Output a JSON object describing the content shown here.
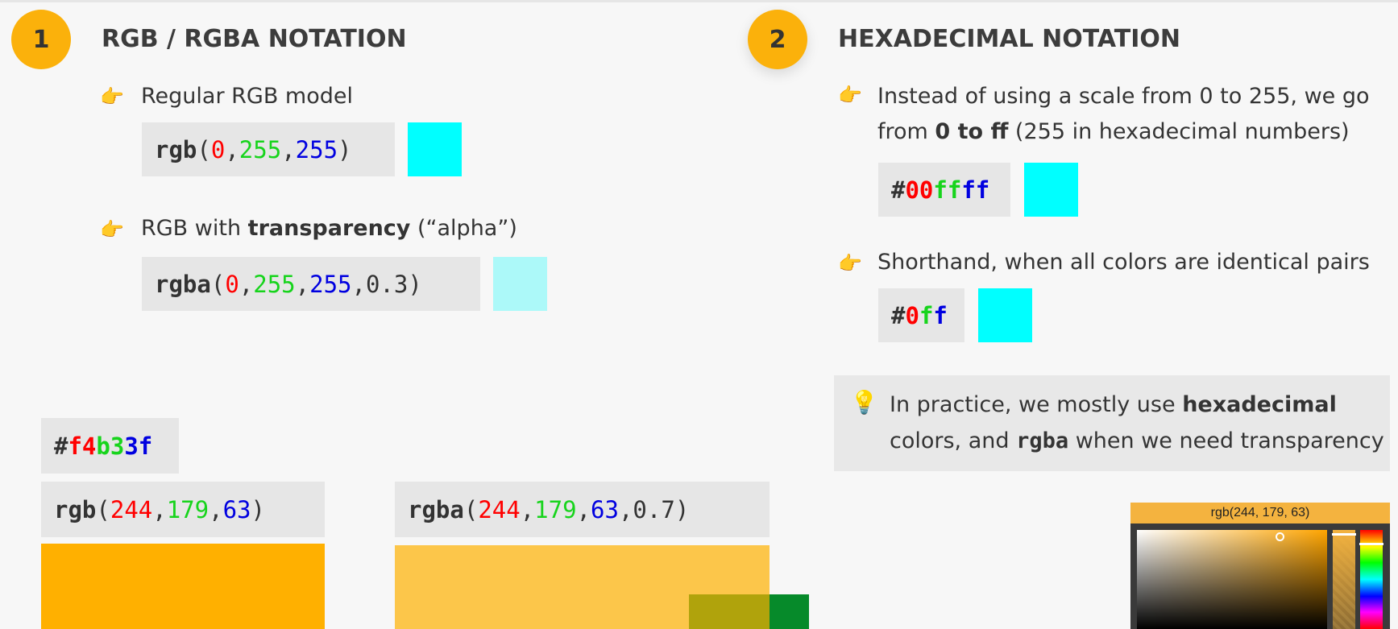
{
  "section1": {
    "number": "1",
    "title": "RGB / RGBA NOTATION",
    "bullet1": "Regular RGB model",
    "rgb_example": {
      "fn": "rgb",
      "r": "0",
      "g": "255",
      "b": "255",
      "color": "#00ffff"
    },
    "bullet2": {
      "before": "RGB with ",
      "bold": "transparency",
      "after": " (“alpha”)"
    },
    "rgba_example": {
      "fn": "rgba",
      "r": "0",
      "g": "255",
      "b": "255",
      "a": "0.3",
      "color": "rgba(0,255,255,0.3)"
    }
  },
  "section2": {
    "number": "2",
    "title": "HEXADECIMAL NOTATION",
    "bullet1": {
      "line1": "Instead of using a scale from 0 to 255, we go",
      "line2_before": "from ",
      "line2_bold": "0 to ff",
      "line2_after": " (255 in hexadecimal numbers)"
    },
    "hex_example": {
      "hash": "#",
      "r": "00",
      "g": "ff",
      "b": "ff",
      "color": "#00ffff"
    },
    "bullet2": "Shorthand, when all colors are identical pairs",
    "short_example": {
      "hash": "#",
      "r": "0",
      "g": "f",
      "b": "f",
      "color": "#00ffff"
    },
    "tip": {
      "line1_before": "In practice, we mostly use ",
      "line1_bold": "hexadecimal",
      "line2_before": "colors, and ",
      "line2_code": "rgba",
      "line2_after": " when we need transparency"
    }
  },
  "demo": {
    "hex": {
      "hash": "#",
      "r": "f4",
      "g": "b3",
      "b": "3f"
    },
    "rgb": {
      "fn": "rgb",
      "r": "244",
      "g": "179",
      "b": "63",
      "color": "#ffb000"
    },
    "rgba": {
      "fn": "rgba",
      "r": "244",
      "g": "179",
      "b": "63",
      "a": "0.7",
      "color": "#fcc64a"
    },
    "overlap_colors": {
      "olive": "#b0a30c",
      "green": "#068a2a"
    },
    "picker_label": "rgb(244, 179, 63)"
  },
  "icons": {
    "bullet": "backhand-index-pointing-right-icon",
    "tip": "light-bulb-icon"
  }
}
